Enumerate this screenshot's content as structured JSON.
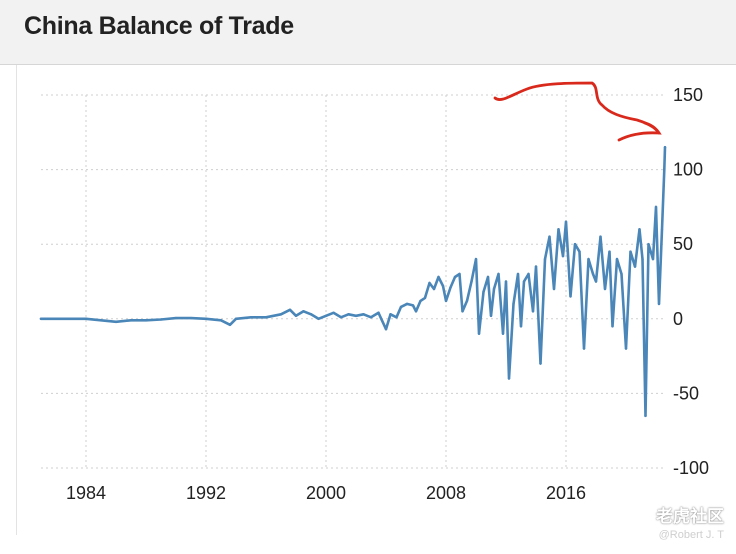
{
  "header": {
    "title": "China Balance of Trade"
  },
  "watermark": {
    "brand": "老虎社区",
    "author": "@Robert J. T"
  },
  "colors": {
    "series": "#4a86b8",
    "annotation": "#d9291c",
    "grid": "#cfcfcf"
  },
  "chart_data": {
    "type": "line",
    "title": "China Balance of Trade",
    "xlabel": "",
    "ylabel": "",
    "xlim": [
      1981.0,
      2022.6
    ],
    "ylim": [
      -100,
      150
    ],
    "x_ticks": [
      "1984",
      "1992",
      "2000",
      "2008",
      "2016"
    ],
    "y_ticks": [
      "150",
      "100",
      "50",
      "0",
      "-50",
      "-100"
    ],
    "grid": true,
    "y_axis_position": "right",
    "series": [
      {
        "points": [
          [
            1981.0,
            0
          ],
          [
            1982.0,
            0
          ],
          [
            1983.0,
            0
          ],
          [
            1984.0,
            0
          ],
          [
            1985.0,
            -1
          ],
          [
            1986.0,
            -2
          ],
          [
            1987.0,
            -1
          ],
          [
            1988.0,
            -1
          ],
          [
            1989.0,
            -0.5
          ],
          [
            1990.0,
            0.5
          ],
          [
            1991.0,
            0.5
          ],
          [
            1992.0,
            0
          ],
          [
            1993.0,
            -1
          ],
          [
            1993.6,
            -4
          ],
          [
            1994.0,
            0
          ],
          [
            1995.0,
            1
          ],
          [
            1996.0,
            1
          ],
          [
            1997.0,
            3
          ],
          [
            1997.6,
            6
          ],
          [
            1998.0,
            2
          ],
          [
            1998.5,
            5
          ],
          [
            1999.0,
            3
          ],
          [
            1999.5,
            0
          ],
          [
            2000.0,
            2
          ],
          [
            2000.5,
            4
          ],
          [
            2001.0,
            1
          ],
          [
            2001.5,
            3
          ],
          [
            2002.0,
            2
          ],
          [
            2002.5,
            3
          ],
          [
            2003.0,
            1
          ],
          [
            2003.5,
            4
          ],
          [
            2004.0,
            -7
          ],
          [
            2004.3,
            3
          ],
          [
            2004.7,
            1
          ],
          [
            2005.0,
            8
          ],
          [
            2005.4,
            10
          ],
          [
            2005.8,
            9
          ],
          [
            2006.0,
            5
          ],
          [
            2006.3,
            12
          ],
          [
            2006.6,
            14
          ],
          [
            2006.9,
            24
          ],
          [
            2007.2,
            20
          ],
          [
            2007.5,
            28
          ],
          [
            2007.8,
            22
          ],
          [
            2008.0,
            12
          ],
          [
            2008.3,
            21
          ],
          [
            2008.6,
            28
          ],
          [
            2008.9,
            30
          ],
          [
            2009.1,
            5
          ],
          [
            2009.4,
            12
          ],
          [
            2009.7,
            25
          ],
          [
            2010.0,
            40
          ],
          [
            2010.2,
            -10
          ],
          [
            2010.5,
            18
          ],
          [
            2010.8,
            28
          ],
          [
            2011.0,
            2
          ],
          [
            2011.2,
            20
          ],
          [
            2011.5,
            30
          ],
          [
            2011.8,
            -10
          ],
          [
            2012.0,
            25
          ],
          [
            2012.2,
            -40
          ],
          [
            2012.5,
            10
          ],
          [
            2012.8,
            30
          ],
          [
            2013.0,
            -5
          ],
          [
            2013.2,
            25
          ],
          [
            2013.5,
            30
          ],
          [
            2013.8,
            5
          ],
          [
            2014.0,
            35
          ],
          [
            2014.3,
            -30
          ],
          [
            2014.6,
            40
          ],
          [
            2014.9,
            55
          ],
          [
            2015.2,
            20
          ],
          [
            2015.5,
            60
          ],
          [
            2015.8,
            42
          ],
          [
            2016.0,
            65
          ],
          [
            2016.3,
            15
          ],
          [
            2016.6,
            50
          ],
          [
            2016.9,
            45
          ],
          [
            2017.2,
            -20
          ],
          [
            2017.5,
            40
          ],
          [
            2017.8,
            30
          ],
          [
            2018.0,
            25
          ],
          [
            2018.3,
            55
          ],
          [
            2018.6,
            20
          ],
          [
            2018.9,
            45
          ],
          [
            2019.1,
            -5
          ],
          [
            2019.4,
            40
          ],
          [
            2019.7,
            30
          ],
          [
            2020.0,
            -20
          ],
          [
            2020.3,
            45
          ],
          [
            2020.6,
            35
          ],
          [
            2020.9,
            60
          ],
          [
            2021.1,
            40
          ],
          [
            2021.3,
            -65
          ],
          [
            2021.5,
            50
          ],
          [
            2021.8,
            40
          ],
          [
            2022.0,
            75
          ],
          [
            2022.2,
            10
          ],
          [
            2022.4,
            60
          ],
          [
            2022.55,
            100
          ],
          [
            2022.6,
            115
          ]
        ]
      }
    ]
  }
}
